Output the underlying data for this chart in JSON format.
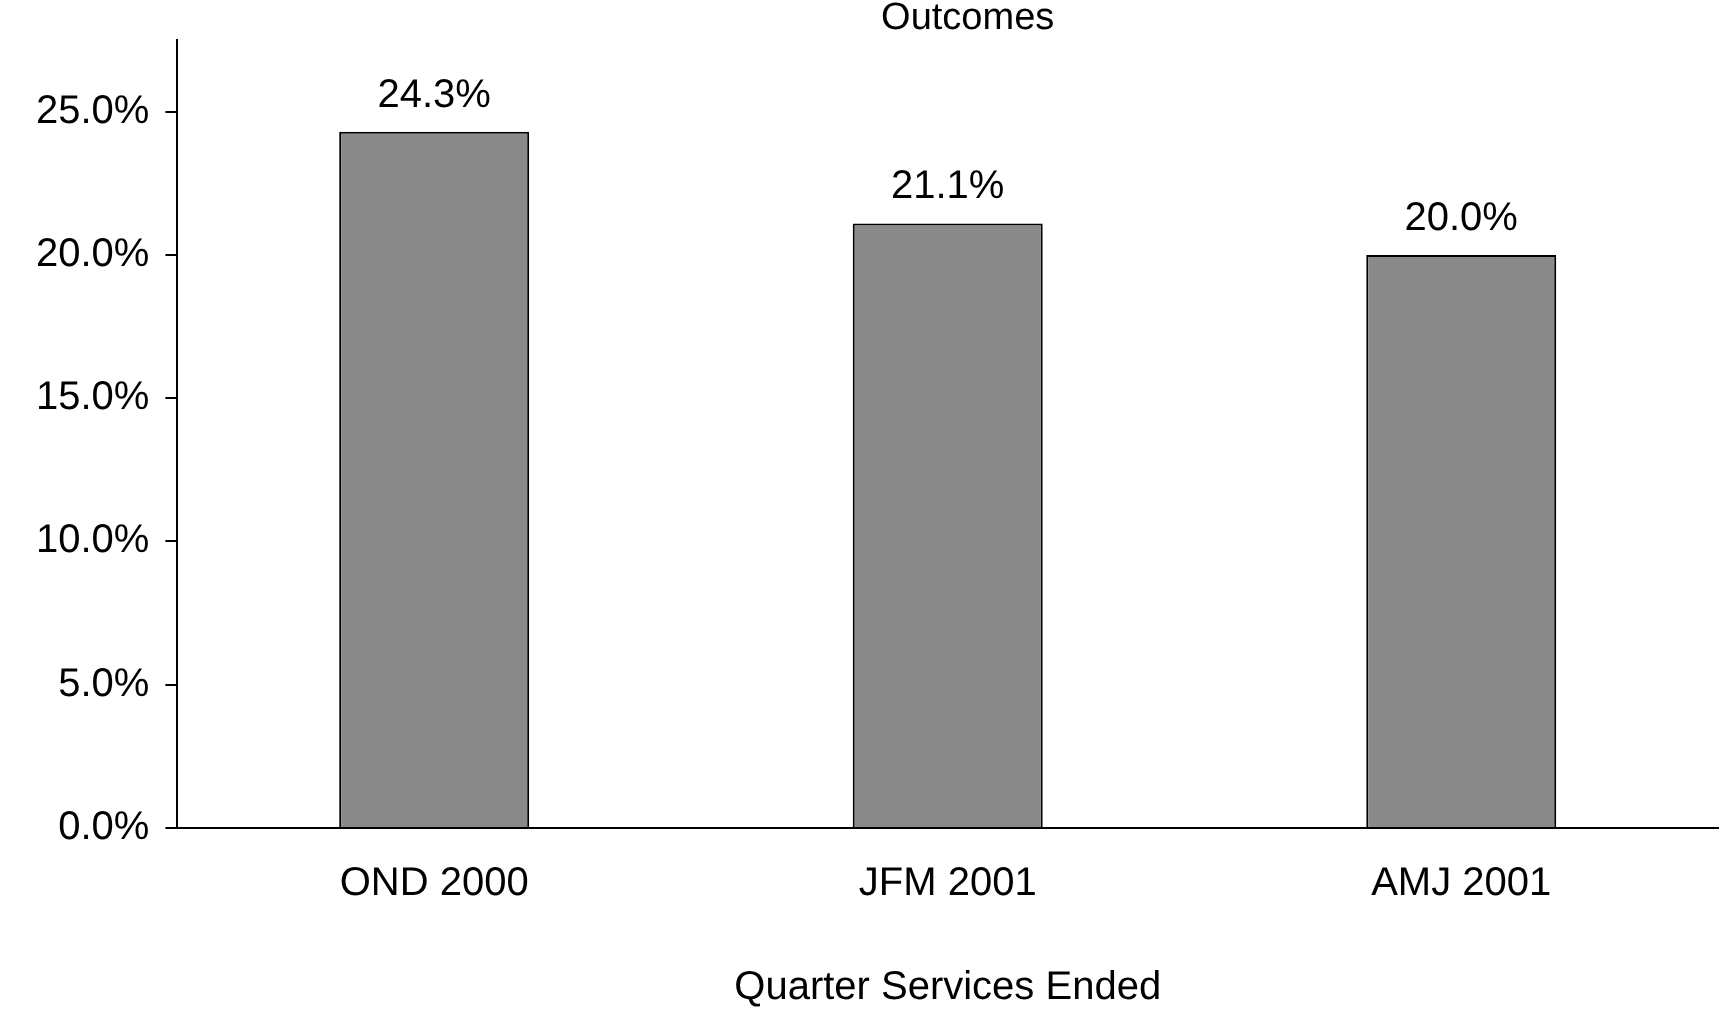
{
  "chart_data": {
    "type": "bar",
    "title": "Outcomes",
    "xlabel": "Quarter Services Ended",
    "categories": [
      "OND 2000",
      "JFM 2001",
      "AMJ 2001"
    ],
    "values": [
      24.3,
      21.1,
      20.0
    ],
    "value_labels": [
      "24.3%",
      "21.1%",
      "20.0%"
    ],
    "color": "#8a8a8a",
    "ylim": [
      0,
      27.5
    ],
    "yticks": [
      {
        "value": 0,
        "label": "0.0%"
      },
      {
        "value": 5,
        "label": "5.0%"
      },
      {
        "value": 10,
        "label": "10.0%"
      },
      {
        "value": 15,
        "label": "15.0%"
      },
      {
        "value": 20,
        "label": "20.0%"
      },
      {
        "value": 25,
        "label": "25.0%"
      }
    ],
    "grid": false,
    "legend": false
  }
}
